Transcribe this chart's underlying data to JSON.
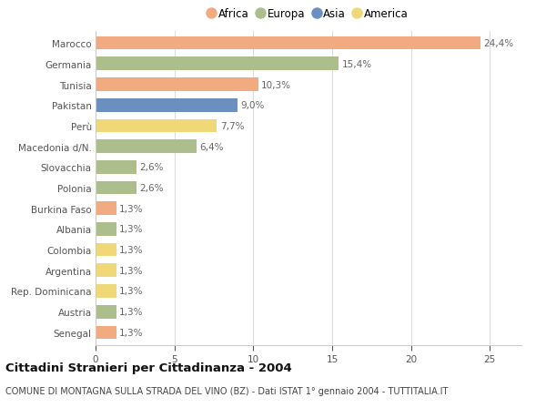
{
  "categories": [
    "Marocco",
    "Germania",
    "Tunisia",
    "Pakistan",
    "Perù",
    "Macedonia d/N.",
    "Slovacchia",
    "Polonia",
    "Burkina Faso",
    "Albania",
    "Colombia",
    "Argentina",
    "Rep. Dominicana",
    "Austria",
    "Senegal"
  ],
  "values": [
    24.4,
    15.4,
    10.3,
    9.0,
    7.7,
    6.4,
    2.6,
    2.6,
    1.3,
    1.3,
    1.3,
    1.3,
    1.3,
    1.3,
    1.3
  ],
  "labels": [
    "24,4%",
    "15,4%",
    "10,3%",
    "9,0%",
    "7,7%",
    "6,4%",
    "2,6%",
    "2,6%",
    "1,3%",
    "1,3%",
    "1,3%",
    "1,3%",
    "1,3%",
    "1,3%",
    "1,3%"
  ],
  "continents": [
    "Africa",
    "Europa",
    "Africa",
    "Asia",
    "America",
    "Europa",
    "Europa",
    "Europa",
    "Africa",
    "Europa",
    "America",
    "America",
    "America",
    "Europa",
    "Africa"
  ],
  "colors": {
    "Africa": "#F2AA80",
    "Europa": "#ABBE8C",
    "Asia": "#6B8FBF",
    "America": "#F0D878"
  },
  "legend_order": [
    "Africa",
    "Europa",
    "Asia",
    "America"
  ],
  "title": "Cittadini Stranieri per Cittadinanza - 2004",
  "subtitle": "COMUNE DI MONTAGNA SULLA STRADA DEL VINO (BZ) - Dati ISTAT 1° gennaio 2004 - TUTTITALIA.IT",
  "xlim": [
    0,
    27
  ],
  "xticks": [
    0,
    5,
    10,
    15,
    20,
    25
  ],
  "background_color": "#ffffff",
  "bar_height": 0.65,
  "title_fontsize": 9.5,
  "subtitle_fontsize": 7,
  "tick_fontsize": 7.5,
  "label_fontsize": 7.5,
  "legend_fontsize": 8.5
}
